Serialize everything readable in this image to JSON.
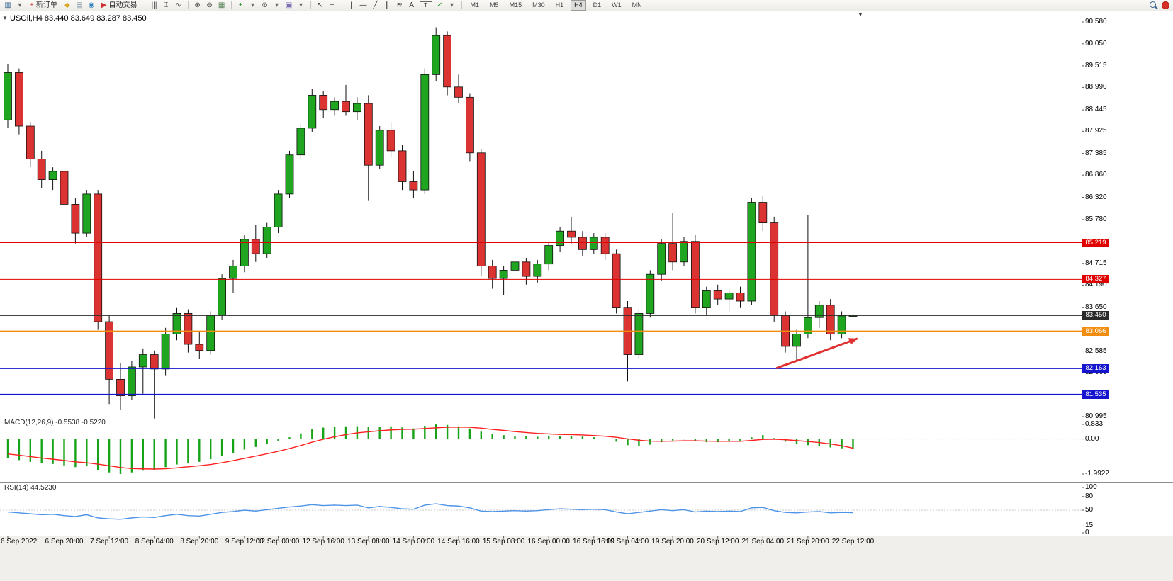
{
  "toolbar": {
    "items": [
      {
        "kind": "icon",
        "name": "new-chart-icon",
        "glyph": "▥",
        "color": "#33648F"
      },
      {
        "kind": "icon",
        "name": "chart-profiles-dropdown-icon",
        "glyph": "▾",
        "color": "#666"
      },
      {
        "kind": "button",
        "name": "new-order-button",
        "label": "新订单",
        "icon": "+",
        "icon_color": "#C83C3C"
      },
      {
        "kind": "icon",
        "name": "alerts-icon",
        "glyph": "◆",
        "color": "#D9A520"
      },
      {
        "kind": "icon",
        "name": "print-icon",
        "glyph": "▤",
        "color": "#6A7F95"
      },
      {
        "kind": "icon",
        "name": "data-window-icon",
        "glyph": "◉",
        "color": "#2F7FBF"
      },
      {
        "kind": "button",
        "name": "autotrading-button",
        "label": "自动交易",
        "icon": "▶",
        "icon_color": "#CC2F2F"
      },
      {
        "kind": "sep"
      },
      {
        "kind": "icon",
        "name": "bar-chart-icon",
        "glyph": "|||",
        "color": "#444"
      },
      {
        "kind": "icon",
        "name": "candlestick-chart-icon",
        "glyph": "⌶",
        "color": "#444"
      },
      {
        "kind": "icon",
        "name": "line-chart-icon",
        "glyph": "∿",
        "color": "#444"
      },
      {
        "kind": "sep"
      },
      {
        "kind": "icon",
        "name": "zoom-in-icon",
        "glyph": "⊕",
        "color": "#444"
      },
      {
        "kind": "icon",
        "name": "zoom-out-icon",
        "glyph": "⊖",
        "color": "#444"
      },
      {
        "kind": "icon",
        "name": "tile-windows-icon",
        "glyph": "▦",
        "color": "#447744"
      },
      {
        "kind": "sep"
      },
      {
        "kind": "icon",
        "name": "indicators-icon",
        "glyph": "+",
        "color": "#1F8F1F"
      },
      {
        "kind": "icon",
        "name": "indicators-dropdown-icon",
        "glyph": "▾",
        "color": "#666"
      },
      {
        "kind": "icon",
        "name": "periods-icon",
        "glyph": "⊙",
        "color": "#444"
      },
      {
        "kind": "icon",
        "name": "periods-dropdown-icon",
        "glyph": "▾",
        "color": "#666"
      },
      {
        "kind": "icon",
        "name": "templates-icon",
        "glyph": "▣",
        "color": "#7A6FB0"
      },
      {
        "kind": "icon",
        "name": "templates-dropdown-icon",
        "glyph": "▾",
        "color": "#666"
      },
      {
        "kind": "sep"
      },
      {
        "kind": "icon",
        "name": "cursor-icon",
        "glyph": "↖",
        "color": "#333"
      },
      {
        "kind": "icon",
        "name": "crosshair-icon",
        "glyph": "+",
        "color": "#333"
      },
      {
        "kind": "sep"
      },
      {
        "kind": "icon",
        "name": "vertical-line-icon",
        "glyph": "|",
        "color": "#333"
      },
      {
        "kind": "icon",
        "name": "horizontal-line-icon",
        "glyph": "—",
        "color": "#333"
      },
      {
        "kind": "icon",
        "name": "trendline-icon",
        "glyph": "╱",
        "color": "#333"
      },
      {
        "kind": "icon",
        "name": "equidistant-channel-icon",
        "glyph": "∥",
        "color": "#333"
      },
      {
        "kind": "icon",
        "name": "fibonacci-icon",
        "glyph": "≋",
        "color": "#333"
      },
      {
        "kind": "icon",
        "name": "text-icon",
        "glyph": "A",
        "color": "#333"
      },
      {
        "kind": "icon",
        "name": "text-label-icon",
        "glyph": "T",
        "color": "#333",
        "boxed": true
      },
      {
        "kind": "icon",
        "name": "arrows-icon",
        "glyph": "✓",
        "color": "#2F8F2F"
      },
      {
        "kind": "icon",
        "name": "arrows-dropdown-icon",
        "glyph": "▾",
        "color": "#666"
      },
      {
        "kind": "sep"
      },
      {
        "kind": "tf"
      },
      {
        "kind": "spacer"
      },
      {
        "kind": "search",
        "name": "search-icon"
      },
      {
        "kind": "circle",
        "name": "notifications-icon",
        "color": "#D93025"
      }
    ],
    "timeframes": [
      "M1",
      "M5",
      "M15",
      "M30",
      "H1",
      "H4",
      "D1",
      "W1",
      "MN"
    ],
    "active_timeframe": "H4"
  },
  "colors": {
    "candle_up": "#1FA51F",
    "candle_down": "#DB3232",
    "outline": "#111111",
    "macd_hist": "#16A316",
    "macd_signal": "#FF2020",
    "rsi_line": "#4D94E8",
    "axis_border": "#8C8C8C",
    "grid_dotted": "#C8C8C8",
    "arrow": "#E03030"
  },
  "chart_data": [
    {
      "type": "candlestick",
      "title": "USOil,H4 83.440 83.649 83.287 83.450",
      "symbol": "USOil",
      "timeframe": "H4",
      "current_ohlc": {
        "open": "83.440",
        "high": "83.649",
        "low": "83.287",
        "close": "83.450"
      },
      "ylim": [
        80.995,
        90.838
      ],
      "y_ticks": [
        "90.580",
        "90.050",
        "89.515",
        "88.990",
        "88.445",
        "87.925",
        "87.385",
        "86.860",
        "86.320",
        "85.780",
        "84.715",
        "84.190",
        "83.650",
        "82.585",
        "82.060",
        "80.995"
      ],
      "time_labels": [
        {
          "i": 0,
          "t": "6 Sep 2022"
        },
        {
          "i": 5,
          "t": "6 Sep 20:00"
        },
        {
          "i": 9,
          "t": "7 Sep 12:00"
        },
        {
          "i": 13,
          "t": "8 Sep 04:00"
        },
        {
          "i": 17,
          "t": "8 Sep 20:00"
        },
        {
          "i": 21,
          "t": "9 Sep 12:00"
        },
        {
          "i": 24,
          "t": "12 Sep 00:00"
        },
        {
          "i": 28,
          "t": "12 Sep 16:00"
        },
        {
          "i": 32,
          "t": "13 Sep 08:00"
        },
        {
          "i": 36,
          "t": "14 Sep 00:00"
        },
        {
          "i": 40,
          "t": "14 Sep 16:00"
        },
        {
          "i": 44,
          "t": "15 Sep 08:00"
        },
        {
          "i": 48,
          "t": "16 Sep 00:00"
        },
        {
          "i": 52,
          "t": "16 Sep 16:00"
        },
        {
          "i": 55,
          "t": "19 Sep 04:00"
        },
        {
          "i": 59,
          "t": "19 Sep 20:00"
        },
        {
          "i": 63,
          "t": "20 Sep 12:00"
        },
        {
          "i": 67,
          "t": "21 Sep 04:00"
        },
        {
          "i": 71,
          "t": "21 Sep 20:00"
        },
        {
          "i": 75,
          "t": "22 Sep 12:00"
        }
      ],
      "candles": [
        [
          88.2,
          89.55,
          88.0,
          89.35
        ],
        [
          89.35,
          89.45,
          87.85,
          88.05
        ],
        [
          88.05,
          88.15,
          87.05,
          87.25
        ],
        [
          87.25,
          87.45,
          86.55,
          86.75
        ],
        [
          86.75,
          87.05,
          86.5,
          86.95
        ],
        [
          86.95,
          87.0,
          85.95,
          86.15
        ],
        [
          86.15,
          86.3,
          85.2,
          85.45
        ],
        [
          85.45,
          86.5,
          85.35,
          86.4
        ],
        [
          86.4,
          86.5,
          83.1,
          83.3
        ],
        [
          83.3,
          83.45,
          81.3,
          81.9
        ],
        [
          81.9,
          82.3,
          81.15,
          81.5
        ],
        [
          81.5,
          82.35,
          81.4,
          82.2
        ],
        [
          82.2,
          82.65,
          81.55,
          82.5
        ],
        [
          82.5,
          82.6,
          80.95,
          82.15
        ],
        [
          82.15,
          83.15,
          82.0,
          83.0
        ],
        [
          83.0,
          83.65,
          82.85,
          83.5
        ],
        [
          83.5,
          83.6,
          82.55,
          82.75
        ],
        [
          82.75,
          83.05,
          82.4,
          82.6
        ],
        [
          82.6,
          83.55,
          82.5,
          83.45
        ],
        [
          83.45,
          84.45,
          83.35,
          84.35
        ],
        [
          84.35,
          84.8,
          84.0,
          84.65
        ],
        [
          84.65,
          85.4,
          84.5,
          85.3
        ],
        [
          85.3,
          85.65,
          84.75,
          84.95
        ],
        [
          84.95,
          85.7,
          84.85,
          85.6
        ],
        [
          85.6,
          86.5,
          85.45,
          86.4
        ],
        [
          86.4,
          87.45,
          86.3,
          87.35
        ],
        [
          87.35,
          88.1,
          87.25,
          88.0
        ],
        [
          88.0,
          88.95,
          87.9,
          88.8
        ],
        [
          88.8,
          88.9,
          88.25,
          88.45
        ],
        [
          88.45,
          88.75,
          88.3,
          88.65
        ],
        [
          88.65,
          89.05,
          88.3,
          88.4
        ],
        [
          88.4,
          88.75,
          88.2,
          88.6
        ],
        [
          88.6,
          88.8,
          86.25,
          87.1
        ],
        [
          87.1,
          88.05,
          87.0,
          87.95
        ],
        [
          87.95,
          88.15,
          87.3,
          87.45
        ],
        [
          87.45,
          87.6,
          86.5,
          86.7
        ],
        [
          86.7,
          86.95,
          86.3,
          86.5
        ],
        [
          86.5,
          89.45,
          86.4,
          89.3
        ],
        [
          89.3,
          90.45,
          89.15,
          90.25
        ],
        [
          90.25,
          90.35,
          88.8,
          89.0
        ],
        [
          89.0,
          89.3,
          88.6,
          88.75
        ],
        [
          88.75,
          88.85,
          87.2,
          87.4
        ],
        [
          87.4,
          87.5,
          84.4,
          84.65
        ],
        [
          84.65,
          84.8,
          84.1,
          84.35
        ],
        [
          84.35,
          84.65,
          83.95,
          84.55
        ],
        [
          84.55,
          84.9,
          84.3,
          84.75
        ],
        [
          84.75,
          84.85,
          84.2,
          84.4
        ],
        [
          84.4,
          84.8,
          84.25,
          84.7
        ],
        [
          84.7,
          85.25,
          84.55,
          85.15
        ],
        [
          85.15,
          85.6,
          85.0,
          85.5
        ],
        [
          85.5,
          85.85,
          85.2,
          85.35
        ],
        [
          85.35,
          85.5,
          84.9,
          85.05
        ],
        [
          85.05,
          85.45,
          84.95,
          85.35
        ],
        [
          85.35,
          85.45,
          84.8,
          84.95
        ],
        [
          84.95,
          85.05,
          83.5,
          83.65
        ],
        [
          83.65,
          83.8,
          81.85,
          82.5
        ],
        [
          82.5,
          83.6,
          82.4,
          83.5
        ],
        [
          83.5,
          84.55,
          83.4,
          84.45
        ],
        [
          84.45,
          85.3,
          84.3,
          85.2
        ],
        [
          85.2,
          85.95,
          84.55,
          84.75
        ],
        [
          84.75,
          85.35,
          84.65,
          85.25
        ],
        [
          85.25,
          85.4,
          83.5,
          83.65
        ],
        [
          83.65,
          84.15,
          83.45,
          84.05
        ],
        [
          84.05,
          84.2,
          83.7,
          83.85
        ],
        [
          83.85,
          84.1,
          83.55,
          84.0
        ],
        [
          84.0,
          84.15,
          83.65,
          83.8
        ],
        [
          83.8,
          86.3,
          83.7,
          86.2
        ],
        [
          86.2,
          86.35,
          85.5,
          85.7
        ],
        [
          85.7,
          85.85,
          83.3,
          83.45
        ],
        [
          83.45,
          83.55,
          82.55,
          82.7
        ],
        [
          82.7,
          83.1,
          82.35,
          83.0
        ],
        [
          83.0,
          85.9,
          82.9,
          83.4
        ],
        [
          83.4,
          83.8,
          83.15,
          83.7
        ],
        [
          83.7,
          83.85,
          82.85,
          83.0
        ],
        [
          83.0,
          83.55,
          82.9,
          83.44
        ],
        [
          83.44,
          83.649,
          83.287,
          83.45
        ]
      ],
      "price_lines": [
        {
          "price": 85.219,
          "label": "85.219",
          "color": "#E00000",
          "width": 1
        },
        {
          "price": 84.327,
          "label": "84.327",
          "color": "#E00000",
          "width": 1
        },
        {
          "price": 83.45,
          "label": "83.450",
          "color": "#2B2B2B",
          "width": 1
        },
        {
          "price": 83.066,
          "label": "83.066",
          "color": "#F28C0F",
          "width": 2
        },
        {
          "price": 82.163,
          "label": "82.163",
          "color": "#1515CF",
          "width": 1.4
        },
        {
          "price": 81.535,
          "label": "81.535",
          "color": "#1515CF",
          "width": 1.4
        }
      ],
      "arrow": {
        "i1": 68.2,
        "p1": 82.17,
        "i2": 75.4,
        "p2": 82.89
      }
    },
    {
      "type": "macd",
      "label": "MACD(12,26,9)",
      "values_text": "-0.5538 -0.5220",
      "ylim": [
        -1.9922,
        0.833
      ],
      "y_ticks": [
        "0.833",
        "0.00",
        "-1.9922"
      ],
      "histogram": [
        -1.1,
        -1.2,
        -1.3,
        -1.38,
        -1.42,
        -1.5,
        -1.6,
        -1.55,
        -1.75,
        -1.9,
        -1.99,
        -1.9,
        -1.8,
        -1.75,
        -1.6,
        -1.45,
        -1.35,
        -1.3,
        -1.15,
        -0.95,
        -0.78,
        -0.6,
        -0.45,
        -0.3,
        -0.12,
        0.1,
        0.32,
        0.55,
        0.65,
        0.7,
        0.72,
        0.73,
        0.68,
        0.7,
        0.72,
        0.66,
        0.6,
        0.75,
        0.83,
        0.8,
        0.72,
        0.6,
        0.42,
        0.3,
        0.22,
        0.18,
        0.15,
        0.13,
        0.15,
        0.18,
        0.18,
        0.14,
        0.1,
        0.02,
        -0.15,
        -0.35,
        -0.4,
        -0.32,
        -0.18,
        -0.08,
        -0.02,
        -0.12,
        -0.18,
        -0.18,
        -0.15,
        -0.12,
        0.1,
        0.22,
        0.05,
        -0.15,
        -0.3,
        -0.35,
        -0.4,
        -0.48,
        -0.53,
        -0.5538
      ],
      "signal": [
        -0.85,
        -0.92,
        -1.0,
        -1.08,
        -1.15,
        -1.22,
        -1.3,
        -1.35,
        -1.43,
        -1.52,
        -1.62,
        -1.68,
        -1.7,
        -1.71,
        -1.69,
        -1.64,
        -1.58,
        -1.52,
        -1.45,
        -1.35,
        -1.23,
        -1.1,
        -0.97,
        -0.84,
        -0.7,
        -0.54,
        -0.37,
        -0.18,
        -0.01,
        0.13,
        0.25,
        0.35,
        0.41,
        0.47,
        0.52,
        0.55,
        0.56,
        0.6,
        0.64,
        0.67,
        0.68,
        0.67,
        0.62,
        0.55,
        0.49,
        0.42,
        0.37,
        0.32,
        0.29,
        0.26,
        0.25,
        0.23,
        0.2,
        0.16,
        0.1,
        0.01,
        -0.07,
        -0.12,
        -0.13,
        -0.12,
        -0.1,
        -0.1,
        -0.12,
        -0.13,
        -0.13,
        -0.13,
        -0.08,
        -0.02,
        -0.01,
        -0.04,
        -0.09,
        -0.14,
        -0.2,
        -0.28,
        -0.38,
        -0.522
      ]
    },
    {
      "type": "rsi",
      "label": "RSI(14)",
      "value_text": "44.5230",
      "ylim": [
        0,
        100
      ],
      "y_ticks": [
        "100",
        "80",
        "50",
        "15",
        "0"
      ],
      "levels": [
        50
      ],
      "values": [
        46,
        44,
        42,
        40,
        41,
        38,
        36,
        40,
        33,
        31,
        30,
        33,
        35,
        34,
        38,
        41,
        38,
        37,
        41,
        45,
        47,
        50,
        48,
        51,
        54,
        57,
        59,
        62,
        60,
        61,
        60,
        61,
        55,
        58,
        56,
        53,
        52,
        61,
        64,
        60,
        59,
        55,
        48,
        47,
        48,
        49,
        48,
        49,
        51,
        53,
        52,
        51,
        52,
        51,
        46,
        42,
        45,
        48,
        51,
        49,
        51,
        46,
        48,
        47,
        48,
        47,
        55,
        56,
        49,
        45,
        44,
        46,
        47,
        44,
        45,
        44.52
      ]
    }
  ]
}
